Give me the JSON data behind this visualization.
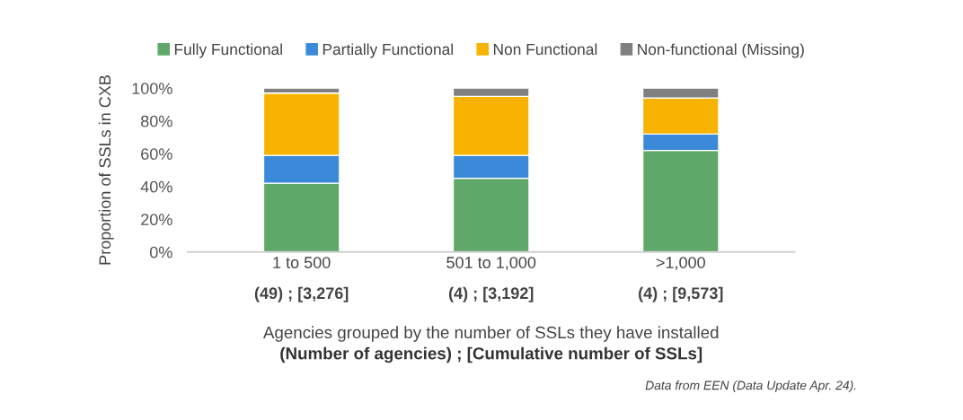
{
  "chart_data": {
    "type": "bar",
    "stacked": true,
    "categories": [
      "1 to 500\n(49) ; [3,276]",
      "501 to 1,000\n(4) ; [3,192]",
      ">1,000\n(4) ; [9,573]"
    ],
    "series": [
      {
        "name": "Fully Functional",
        "color": "#5fa86a",
        "values": [
          42,
          45,
          62
        ]
      },
      {
        "name": "Partially Functional",
        "color": "#3a8ad9",
        "values": [
          17,
          14,
          10
        ]
      },
      {
        "name": "Non Functional",
        "color": "#f8b200",
        "values": [
          38,
          36,
          22
        ]
      },
      {
        "name": "Non-functional (Missing)",
        "color": "#7f7f7f",
        "values": [
          3,
          5,
          6
        ]
      }
    ],
    "ylabel": "Proportion of SSLs in CXB",
    "xlabel": "Agencies grouped by the number of SSLs they have installed\n(Number of agencies) ; [Cumulative number of SSLs]",
    "ylim": [
      0,
      100
    ],
    "yticks": [
      {
        "value": 0,
        "label": "0%"
      },
      {
        "value": 20,
        "label": "20%"
      },
      {
        "value": 40,
        "label": "40%"
      },
      {
        "value": 60,
        "label": "60%"
      },
      {
        "value": 80,
        "label": "80%"
      },
      {
        "value": 100,
        "label": "100%"
      }
    ],
    "legend": "top",
    "grid": false,
    "annotations": [
      "Data from EEN (Data Update Apr. 24)."
    ]
  }
}
